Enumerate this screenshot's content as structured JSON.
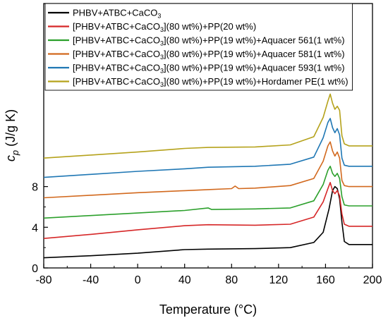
{
  "chart_data": {
    "type": "line",
    "xlabel": "Temperature (°C)",
    "ylabel": {
      "main": "c",
      "sub": "p",
      "unit": " (J/g K)"
    },
    "xlim": [
      -80,
      200
    ],
    "ylim": [
      0,
      26
    ],
    "xticks": [
      -80,
      -40,
      0,
      40,
      80,
      120,
      160,
      200
    ],
    "yticks": [
      0,
      4,
      8
    ],
    "legend_position": "top-left",
    "series": [
      {
        "name_parts": [
          {
            "t": "PHBV+ATBC+CaCO"
          },
          {
            "t": "3",
            "sub": true
          }
        ],
        "color": "#000000",
        "points": [
          [
            -80,
            1.0
          ],
          [
            -40,
            1.2
          ],
          [
            0,
            1.45
          ],
          [
            40,
            1.8
          ],
          [
            60,
            1.85
          ],
          [
            100,
            1.9
          ],
          [
            130,
            2.0
          ],
          [
            150,
            2.5
          ],
          [
            158,
            3.5
          ],
          [
            163,
            5.8
          ],
          [
            166,
            7.6
          ],
          [
            168,
            8.0
          ],
          [
            170,
            7.8
          ],
          [
            172,
            6.8
          ],
          [
            174,
            4.5
          ],
          [
            176,
            2.6
          ],
          [
            180,
            2.3
          ],
          [
            200,
            2.3
          ]
        ]
      },
      {
        "name_parts": [
          {
            "t": "[PHBV+ATBC+CaCO"
          },
          {
            "t": "3",
            "sub": true
          },
          {
            "t": "](80 wt%)+PP(20 wt%)"
          }
        ],
        "color": "#d62728",
        "points": [
          [
            -80,
            2.9
          ],
          [
            -40,
            3.3
          ],
          [
            0,
            3.75
          ],
          [
            40,
            4.15
          ],
          [
            60,
            4.25
          ],
          [
            100,
            4.2
          ],
          [
            130,
            4.3
          ],
          [
            150,
            5.0
          ],
          [
            158,
            6.5
          ],
          [
            162,
            7.8
          ],
          [
            164,
            8.4
          ],
          [
            166,
            7.6
          ],
          [
            168,
            7.3
          ],
          [
            170,
            7.6
          ],
          [
            172,
            7.1
          ],
          [
            174,
            5.3
          ],
          [
            176,
            4.3
          ],
          [
            180,
            4.1
          ],
          [
            200,
            4.1
          ]
        ]
      },
      {
        "name_parts": [
          {
            "t": "[PHBV+ATBC+CaCO"
          },
          {
            "t": "3",
            "sub": true
          },
          {
            "t": "](80 wt%)+PP(19 wt%)+Aquacer 561(1 wt%)"
          }
        ],
        "color": "#2ca02c",
        "points": [
          [
            -80,
            4.9
          ],
          [
            -40,
            5.15
          ],
          [
            0,
            5.4
          ],
          [
            40,
            5.65
          ],
          [
            60,
            5.9
          ],
          [
            63,
            5.75
          ],
          [
            100,
            5.8
          ],
          [
            130,
            5.9
          ],
          [
            150,
            6.6
          ],
          [
            158,
            8.2
          ],
          [
            162,
            9.6
          ],
          [
            164,
            10.0
          ],
          [
            166,
            9.3
          ],
          [
            168,
            9.0
          ],
          [
            170,
            9.3
          ],
          [
            172,
            8.8
          ],
          [
            174,
            7.0
          ],
          [
            176,
            6.2
          ],
          [
            180,
            6.1
          ],
          [
            200,
            6.1
          ]
        ]
      },
      {
        "name_parts": [
          {
            "t": "[PHBV+ATBC+CaCO"
          },
          {
            "t": "3",
            "sub": true
          },
          {
            "t": "](80 wt%)+PP(19 wt%)+Aquacer 581(1 wt%)"
          }
        ],
        "color": "#d2691e",
        "points": [
          [
            -80,
            6.9
          ],
          [
            -40,
            7.15
          ],
          [
            0,
            7.4
          ],
          [
            40,
            7.6
          ],
          [
            60,
            7.7
          ],
          [
            80,
            7.8
          ],
          [
            83,
            8.05
          ],
          [
            86,
            7.8
          ],
          [
            100,
            7.85
          ],
          [
            130,
            8.1
          ],
          [
            150,
            8.8
          ],
          [
            158,
            10.5
          ],
          [
            162,
            12.0
          ],
          [
            164,
            12.4
          ],
          [
            166,
            11.5
          ],
          [
            168,
            11.0
          ],
          [
            170,
            11.4
          ],
          [
            172,
            10.8
          ],
          [
            174,
            8.6
          ],
          [
            176,
            8.1
          ],
          [
            180,
            8.0
          ],
          [
            200,
            8.0
          ]
        ]
      },
      {
        "name_parts": [
          {
            "t": "[PHBV+ATBC+CaCO"
          },
          {
            "t": "3",
            "sub": true
          },
          {
            "t": "](80 wt%)+PP(19 wt%)+Aquacer 593(1 wt%)"
          }
        ],
        "color": "#1f77b4",
        "points": [
          [
            -80,
            8.9
          ],
          [
            -40,
            9.2
          ],
          [
            0,
            9.5
          ],
          [
            40,
            9.75
          ],
          [
            60,
            9.9
          ],
          [
            100,
            10.0
          ],
          [
            130,
            10.2
          ],
          [
            150,
            10.9
          ],
          [
            158,
            12.8
          ],
          [
            162,
            14.3
          ],
          [
            164,
            14.7
          ],
          [
            166,
            13.8
          ],
          [
            168,
            13.3
          ],
          [
            170,
            13.7
          ],
          [
            172,
            13.1
          ],
          [
            174,
            10.8
          ],
          [
            176,
            10.1
          ],
          [
            180,
            10.0
          ],
          [
            200,
            10.0
          ]
        ]
      },
      {
        "name_parts": [
          {
            "t": "[PHBV+ATBC+CaCO"
          },
          {
            "t": "3",
            "sub": true
          },
          {
            "t": "](80 wt%)+PP(19 wt%)+Hordamer PE(1 wt%)"
          }
        ],
        "color": "#b5a21b",
        "points": [
          [
            -80,
            10.8
          ],
          [
            -40,
            11.1
          ],
          [
            0,
            11.4
          ],
          [
            40,
            11.75
          ],
          [
            60,
            11.85
          ],
          [
            100,
            11.9
          ],
          [
            130,
            12.1
          ],
          [
            150,
            12.9
          ],
          [
            158,
            14.8
          ],
          [
            162,
            16.4
          ],
          [
            164,
            17.1
          ],
          [
            166,
            16.2
          ],
          [
            168,
            15.6
          ],
          [
            170,
            15.9
          ],
          [
            172,
            15.5
          ],
          [
            174,
            13.0
          ],
          [
            176,
            12.2
          ],
          [
            180,
            12.0
          ],
          [
            200,
            12.0
          ]
        ]
      }
    ]
  }
}
